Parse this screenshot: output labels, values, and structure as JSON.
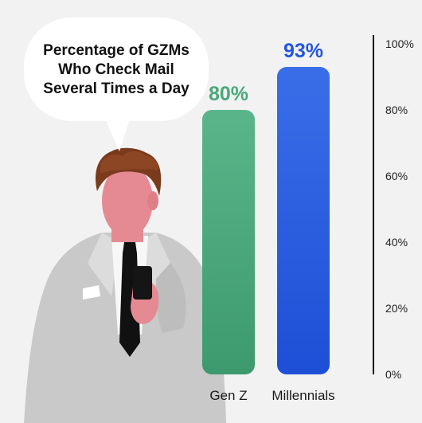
{
  "chart_data": {
    "type": "bar",
    "title": "Percentage of GZMs Who Check Mail Several Times a Day",
    "title_lines": [
      "Percentage of GZMs",
      "Who Check Mail",
      "Several Times a Day"
    ],
    "categories": [
      "Gen Z",
      "Millennials"
    ],
    "values": [
      80,
      93
    ],
    "data_labels": [
      "80%",
      "93%"
    ],
    "ylim": [
      0,
      100
    ],
    "yticks": [
      0,
      20,
      40,
      60,
      80,
      100
    ],
    "ytick_labels": [
      "0%",
      "20%",
      "40%",
      "60%",
      "80%",
      "100%"
    ],
    "xlabel": "",
    "ylabel": "",
    "grid": false,
    "legend": "none",
    "y_axis_position": "right"
  },
  "colors": {
    "background": "#f2f2f2",
    "gen_z_top": "#5bb58a",
    "gen_z_bottom": "#3d9a6e",
    "gen_z_label": "#4aa87b",
    "millennials_top": "#3a6ee8",
    "millennials_bottom": "#1d4fd6",
    "millennials_label": "#2456e0",
    "axis": "#111111"
  },
  "illustration": {
    "figure": "man-in-suit-with-phone",
    "bubble": "speech-bubble"
  }
}
